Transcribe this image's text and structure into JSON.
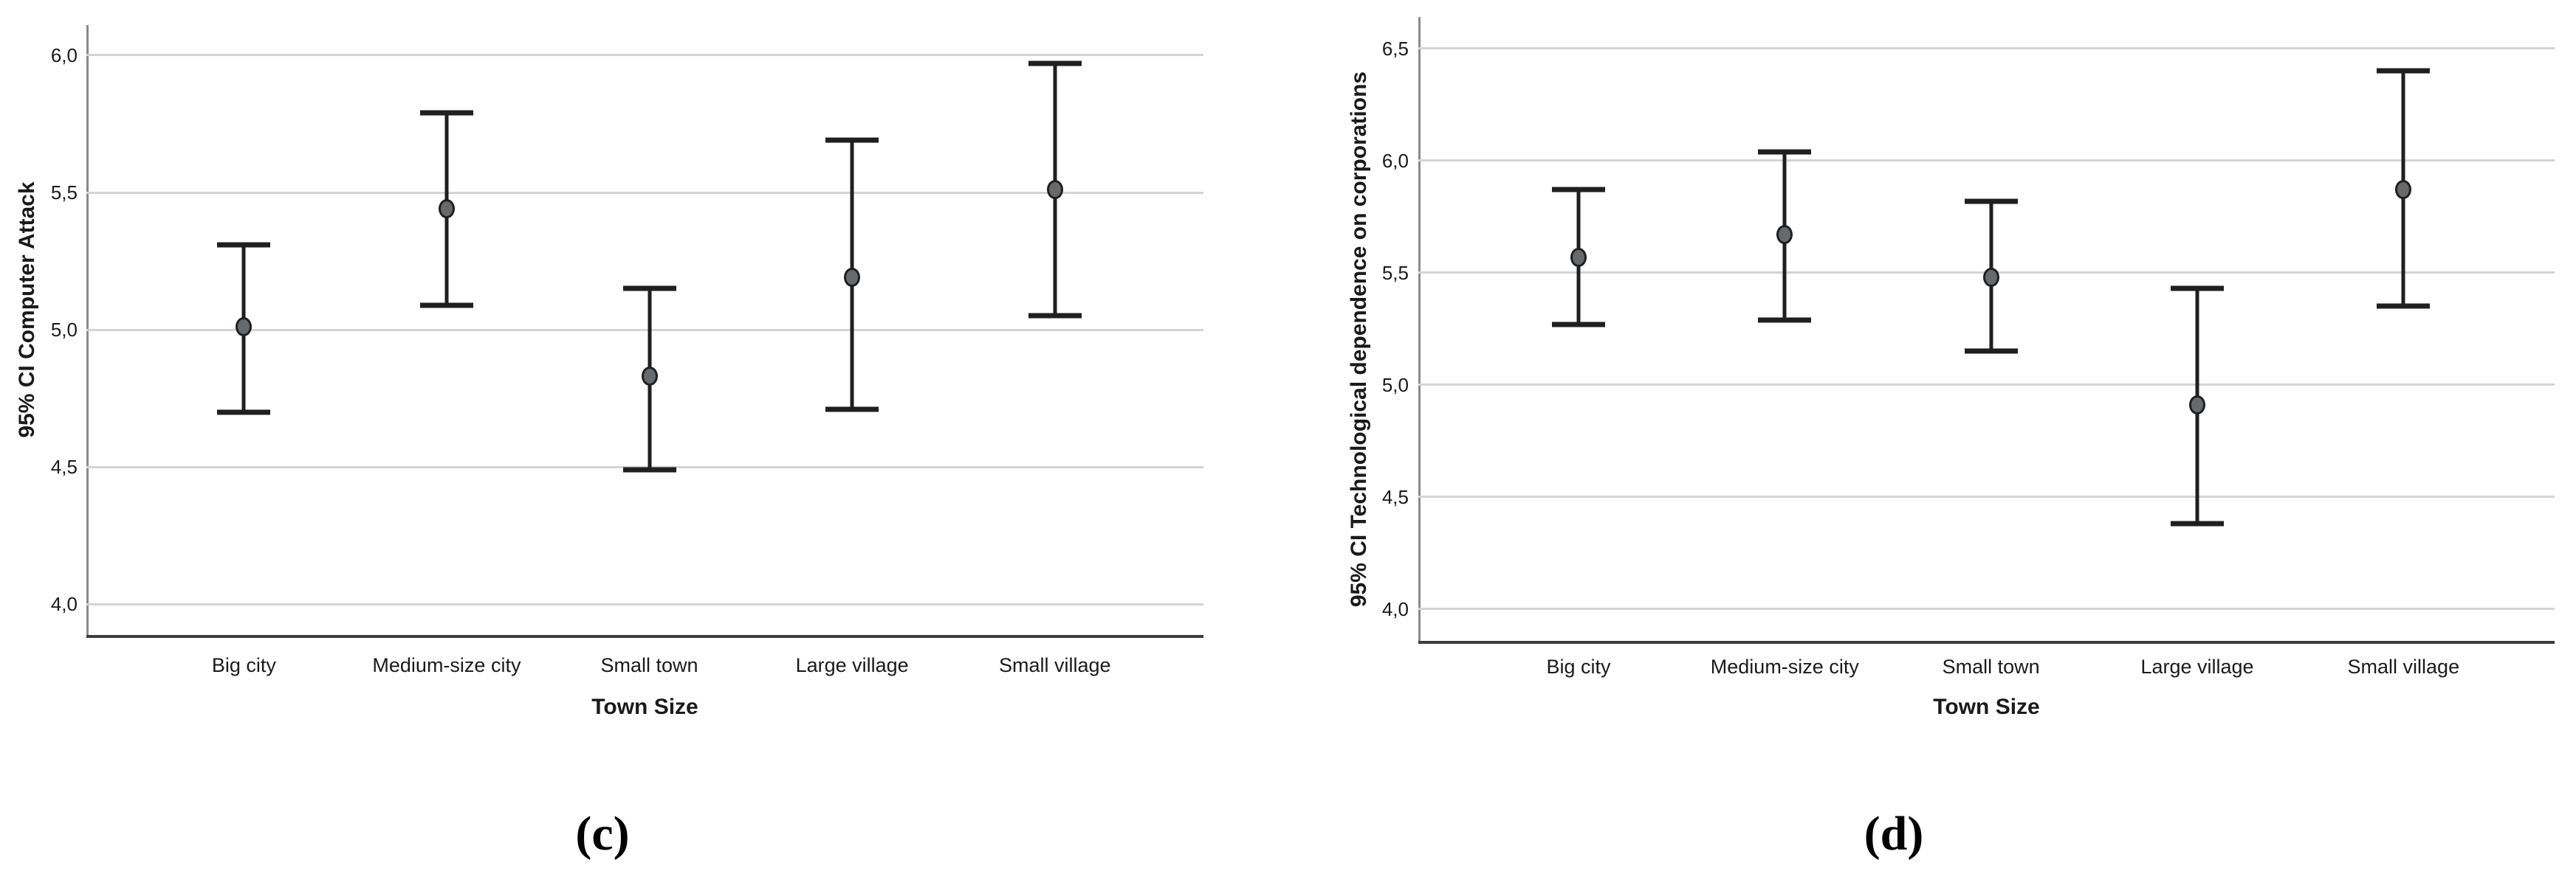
{
  "figure": {
    "colors": {
      "background": "#ffffff",
      "gridline": "#d4d4d4",
      "y_axis_line": "#8a8a8a",
      "x_axis_line": "#3d3d3d",
      "errorbar": "#1f1f1f",
      "marker_fill": "#666a6d",
      "marker_stroke": "#1f1f1f",
      "text": "#1a1a1a"
    }
  },
  "chart_data": [
    {
      "type": "scatter",
      "error_bars": "95% CI",
      "caption": "(c)",
      "ylabel": "95% CI Computer Attack",
      "xlabel": "Town Size",
      "categories": [
        "Big city",
        "Medium-size city",
        "Small town",
        "Large village",
        "Small village"
      ],
      "yticks": [
        {
          "value": 6.0,
          "label": "6,0"
        },
        {
          "value": 5.5,
          "label": "5,5"
        },
        {
          "value": 5.0,
          "label": "5,0"
        },
        {
          "value": 4.5,
          "label": "4,5"
        },
        {
          "value": 4.0,
          "label": "4,0"
        }
      ],
      "ylim": [
        3.88,
        6.11
      ],
      "grid": true,
      "points": [
        {
          "category": "Big city",
          "mean": 5.01,
          "ci_low": 4.7,
          "ci_high": 5.31
        },
        {
          "category": "Medium-size city",
          "mean": 5.44,
          "ci_low": 5.09,
          "ci_high": 5.79
        },
        {
          "category": "Small town",
          "mean": 4.83,
          "ci_low": 4.49,
          "ci_high": 5.15
        },
        {
          "category": "Large village",
          "mean": 5.19,
          "ci_low": 4.71,
          "ci_high": 5.69
        },
        {
          "category": "Small village",
          "mean": 5.51,
          "ci_low": 5.05,
          "ci_high": 5.97
        }
      ]
    },
    {
      "type": "scatter",
      "error_bars": "95% CI",
      "caption": "(d)",
      "ylabel": "95% CI Technological dependence on corporations",
      "xlabel": "Town Size",
      "categories": [
        "Big city",
        "Medium-size city",
        "Small town",
        "Large village",
        "Small village"
      ],
      "yticks": [
        {
          "value": 6.5,
          "label": "6,5"
        },
        {
          "value": 6.0,
          "label": "6,0"
        },
        {
          "value": 5.5,
          "label": "5,5"
        },
        {
          "value": 5.0,
          "label": "5,0"
        },
        {
          "value": 4.5,
          "label": "4,5"
        },
        {
          "value": 4.0,
          "label": "4,0"
        }
      ],
      "ylim": [
        3.85,
        6.64
      ],
      "grid": true,
      "points": [
        {
          "category": "Big city",
          "mean": 5.57,
          "ci_low": 5.27,
          "ci_high": 5.87
        },
        {
          "category": "Medium-size city",
          "mean": 5.67,
          "ci_low": 5.29,
          "ci_high": 6.04
        },
        {
          "category": "Small town",
          "mean": 5.48,
          "ci_low": 5.15,
          "ci_high": 5.82
        },
        {
          "category": "Large village",
          "mean": 4.91,
          "ci_low": 4.38,
          "ci_high": 5.43
        },
        {
          "category": "Small village",
          "mean": 5.87,
          "ci_low": 5.35,
          "ci_high": 6.4
        }
      ]
    }
  ]
}
